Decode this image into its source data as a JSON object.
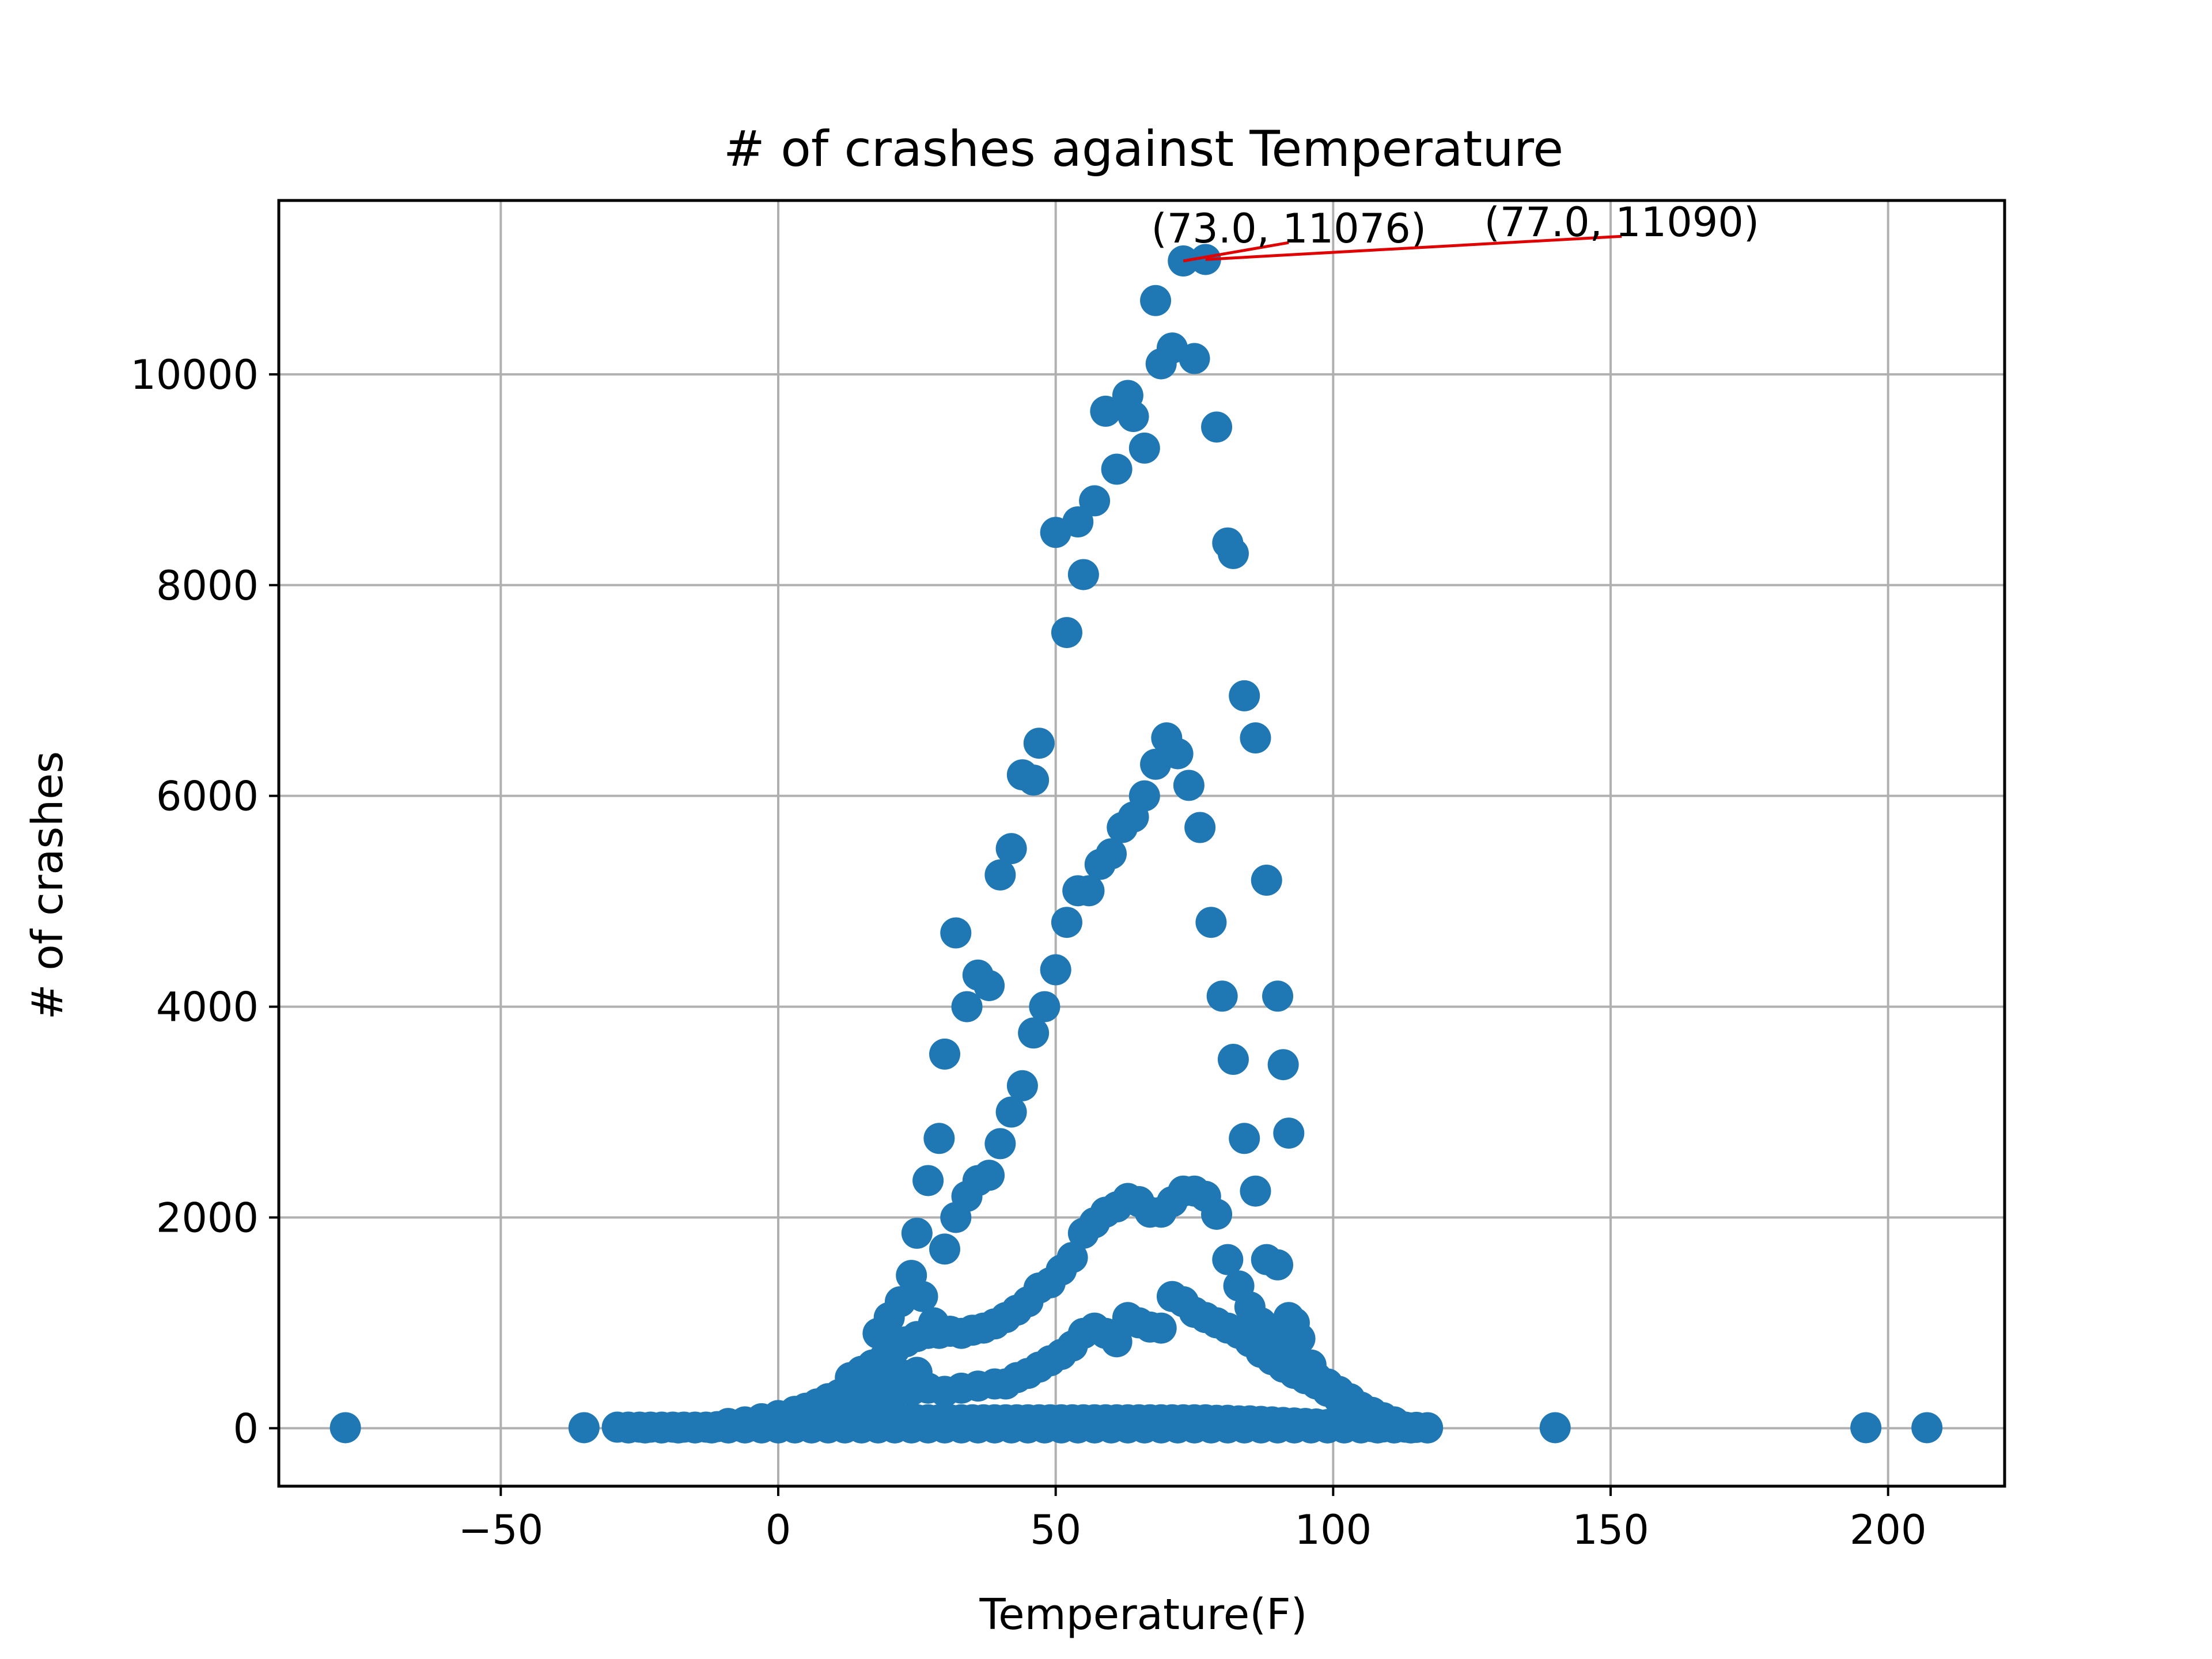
{
  "chart_data": {
    "type": "scatter",
    "title": "# of crashes against Temperature",
    "xlabel": "Temperature(F)",
    "ylabel": "# of crashes",
    "xlim": [
      -90,
      221
    ],
    "ylim": [
      -550,
      11650
    ],
    "xticks": [
      -50,
      0,
      50,
      100,
      150,
      200
    ],
    "xtick_labels": [
      "−50",
      "0",
      "50",
      "100",
      "150",
      "200"
    ],
    "yticks": [
      0,
      2000,
      4000,
      6000,
      8000,
      10000
    ],
    "ytick_labels": [
      "0",
      "2000",
      "4000",
      "6000",
      "8000",
      "10000"
    ],
    "grid": true,
    "marker_color": "#1f77b4",
    "annotation_color": "#e00000",
    "annotations": [
      {
        "label": "(73.0, 11076)",
        "point": [
          73.0,
          11076
        ],
        "text_at": [
          92,
          11250
        ]
      },
      {
        "label": "(77.0, 11090)",
        "point": [
          77.0,
          11090
        ],
        "text_at": [
          152,
          11310
        ]
      }
    ],
    "series": [
      {
        "values": [
          [
            -78,
            5
          ],
          [
            -35,
            5
          ],
          [
            140,
            5
          ],
          [
            196,
            5
          ],
          [
            207,
            5
          ],
          [
            -29,
            10
          ],
          [
            -27,
            10
          ],
          [
            -25,
            10
          ],
          [
            -23,
            10
          ],
          [
            -21,
            10
          ],
          [
            -19,
            10
          ],
          [
            -17,
            10
          ],
          [
            -15,
            10
          ],
          [
            -13,
            10
          ],
          [
            -11,
            15
          ],
          [
            -9,
            15
          ],
          [
            -7,
            20
          ],
          [
            -5,
            20
          ],
          [
            -3,
            25
          ],
          [
            -1,
            30
          ],
          [
            1,
            35
          ],
          [
            3,
            40
          ],
          [
            5,
            45
          ],
          [
            7,
            50
          ],
          [
            9,
            55
          ],
          [
            11,
            60
          ],
          [
            13,
            60
          ],
          [
            15,
            65
          ],
          [
            17,
            70
          ],
          [
            19,
            70
          ],
          [
            21,
            75
          ],
          [
            23,
            75
          ],
          [
            25,
            80
          ],
          [
            27,
            80
          ],
          [
            29,
            80
          ],
          [
            31,
            80
          ],
          [
            33,
            80
          ],
          [
            35,
            80
          ],
          [
            37,
            80
          ],
          [
            39,
            80
          ],
          [
            41,
            80
          ],
          [
            43,
            80
          ],
          [
            45,
            80
          ],
          [
            47,
            80
          ],
          [
            49,
            80
          ],
          [
            51,
            80
          ],
          [
            53,
            80
          ],
          [
            55,
            80
          ],
          [
            57,
            80
          ],
          [
            59,
            80
          ],
          [
            61,
            80
          ],
          [
            63,
            80
          ],
          [
            65,
            80
          ],
          [
            67,
            80
          ],
          [
            69,
            80
          ],
          [
            71,
            80
          ],
          [
            73,
            80
          ],
          [
            75,
            80
          ],
          [
            77,
            80
          ],
          [
            79,
            75
          ],
          [
            81,
            75
          ],
          [
            83,
            70
          ],
          [
            85,
            70
          ],
          [
            87,
            65
          ],
          [
            89,
            60
          ],
          [
            91,
            55
          ],
          [
            93,
            50
          ],
          [
            95,
            45
          ],
          [
            97,
            40
          ],
          [
            99,
            35
          ],
          [
            101,
            30
          ],
          [
            103,
            25
          ],
          [
            105,
            20
          ],
          [
            107,
            15
          ],
          [
            109,
            12
          ],
          [
            111,
            10
          ],
          [
            113,
            10
          ],
          [
            115,
            8
          ],
          [
            117,
            5
          ],
          [
            -27,
            3
          ],
          [
            -24,
            3
          ],
          [
            -21,
            3
          ],
          [
            -18,
            3
          ],
          [
            -15,
            3
          ],
          [
            -12,
            3
          ],
          [
            -9,
            3
          ],
          [
            -6,
            3
          ],
          [
            -3,
            3
          ],
          [
            0,
            3
          ],
          [
            3,
            3
          ],
          [
            6,
            3
          ],
          [
            9,
            3
          ],
          [
            12,
            3
          ],
          [
            15,
            3
          ],
          [
            18,
            3
          ],
          [
            21,
            3
          ],
          [
            24,
            3
          ],
          [
            27,
            3
          ],
          [
            30,
            3
          ],
          [
            33,
            3
          ],
          [
            36,
            3
          ],
          [
            39,
            3
          ],
          [
            42,
            3
          ],
          [
            45,
            3
          ],
          [
            48,
            3
          ],
          [
            51,
            3
          ],
          [
            54,
            3
          ],
          [
            57,
            3
          ],
          [
            60,
            3
          ],
          [
            63,
            3
          ],
          [
            66,
            3
          ],
          [
            69,
            3
          ],
          [
            72,
            3
          ],
          [
            75,
            3
          ],
          [
            78,
            3
          ],
          [
            81,
            3
          ],
          [
            84,
            3
          ],
          [
            87,
            3
          ],
          [
            90,
            3
          ],
          [
            93,
            3
          ],
          [
            96,
            3
          ],
          [
            99,
            3
          ],
          [
            102,
            3
          ],
          [
            105,
            3
          ],
          [
            108,
            3
          ],
          [
            111,
            3
          ],
          [
            114,
            3
          ],
          [
            117,
            3
          ],
          [
            -9,
            45
          ],
          [
            -6,
            60
          ],
          [
            -3,
            90
          ],
          [
            0,
            120
          ],
          [
            3,
            160
          ],
          [
            5,
            190
          ],
          [
            7,
            230
          ],
          [
            9,
            280
          ],
          [
            11,
            320
          ],
          [
            13,
            350
          ],
          [
            15,
            400
          ],
          [
            17,
            420
          ],
          [
            19,
            450
          ],
          [
            21,
            470
          ],
          [
            23,
            500
          ],
          [
            25,
            530
          ],
          [
            0,
            70
          ],
          [
            3,
            100
          ],
          [
            6,
            130
          ],
          [
            9,
            170
          ],
          [
            12,
            210
          ],
          [
            15,
            260
          ],
          [
            18,
            300
          ],
          [
            21,
            330
          ],
          [
            24,
            360
          ],
          [
            27,
            380
          ],
          [
            30,
            350
          ],
          [
            33,
            380
          ],
          [
            36,
            400
          ],
          [
            39,
            420
          ],
          [
            41,
            420
          ],
          [
            43,
            480
          ],
          [
            45,
            520
          ],
          [
            47,
            580
          ],
          [
            49,
            640
          ],
          [
            51,
            700
          ],
          [
            53,
            780
          ],
          [
            55,
            900
          ],
          [
            57,
            950
          ],
          [
            59,
            900
          ],
          [
            61,
            820
          ],
          [
            63,
            1050
          ],
          [
            65,
            1000
          ],
          [
            67,
            960
          ],
          [
            69,
            950
          ],
          [
            71,
            1250
          ],
          [
            73,
            1200
          ],
          [
            75,
            1100
          ],
          [
            77,
            1050
          ],
          [
            79,
            1000
          ],
          [
            81,
            950
          ],
          [
            83,
            900
          ],
          [
            85,
            820
          ],
          [
            87,
            720
          ],
          [
            89,
            650
          ],
          [
            91,
            580
          ],
          [
            93,
            520
          ],
          [
            95,
            470
          ],
          [
            97,
            420
          ],
          [
            99,
            350
          ],
          [
            101,
            280
          ],
          [
            103,
            220
          ],
          [
            105,
            160
          ],
          [
            107,
            110
          ],
          [
            109,
            80
          ],
          [
            111,
            60
          ],
          [
            13,
            480
          ],
          [
            15,
            540
          ],
          [
            17,
            600
          ],
          [
            19,
            660
          ],
          [
            21,
            750
          ],
          [
            23,
            820
          ],
          [
            25,
            870
          ],
          [
            27,
            900
          ],
          [
            29,
            900
          ],
          [
            31,
            920
          ],
          [
            33,
            900
          ],
          [
            35,
            930
          ],
          [
            37,
            950
          ],
          [
            39,
            990
          ],
          [
            41,
            1050
          ],
          [
            43,
            1120
          ],
          [
            45,
            1200
          ],
          [
            47,
            1330
          ],
          [
            49,
            1380
          ],
          [
            51,
            1500
          ],
          [
            53,
            1620
          ],
          [
            55,
            1850
          ],
          [
            57,
            1950
          ],
          [
            59,
            2050
          ],
          [
            61,
            2100
          ],
          [
            63,
            2180
          ],
          [
            65,
            2150
          ],
          [
            67,
            2050
          ],
          [
            69,
            2050
          ],
          [
            71,
            2150
          ],
          [
            73,
            2250
          ],
          [
            75,
            2250
          ],
          [
            77,
            2200
          ],
          [
            79,
            2030
          ],
          [
            81,
            1600
          ],
          [
            83,
            1350
          ],
          [
            85,
            1150
          ],
          [
            87,
            1000
          ],
          [
            89,
            900
          ],
          [
            91,
            800
          ],
          [
            93,
            650
          ],
          [
            95,
            550
          ],
          [
            97,
            480
          ],
          [
            99,
            420
          ],
          [
            101,
            350
          ],
          [
            103,
            280
          ],
          [
            105,
            200
          ],
          [
            107,
            150
          ],
          [
            109,
            100
          ],
          [
            18,
            900
          ],
          [
            20,
            1050
          ],
          [
            22,
            1200
          ],
          [
            24,
            1450
          ],
          [
            26,
            1250
          ],
          [
            28,
            1000
          ],
          [
            30,
            1700
          ],
          [
            32,
            2000
          ],
          [
            34,
            2200
          ],
          [
            36,
            2350
          ],
          [
            38,
            2400
          ],
          [
            40,
            2700
          ],
          [
            42,
            3000
          ],
          [
            44,
            3250
          ],
          [
            46,
            3750
          ],
          [
            48,
            4000
          ],
          [
            50,
            4350
          ],
          [
            52,
            4800
          ],
          [
            54,
            5100
          ],
          [
            56,
            5100
          ],
          [
            58,
            5350
          ],
          [
            60,
            5450
          ],
          [
            62,
            5700
          ],
          [
            64,
            5800
          ],
          [
            66,
            6000
          ],
          [
            68,
            6300
          ],
          [
            70,
            6550
          ],
          [
            72,
            6400
          ],
          [
            74,
            6100
          ],
          [
            76,
            5700
          ],
          [
            78,
            4800
          ],
          [
            80,
            4100
          ],
          [
            82,
            3500
          ],
          [
            84,
            2750
          ],
          [
            86,
            2250
          ],
          [
            88,
            1600
          ],
          [
            90,
            1550
          ],
          [
            92,
            1050
          ],
          [
            94,
            850
          ],
          [
            96,
            600
          ],
          [
            25,
            1850
          ],
          [
            27,
            2350
          ],
          [
            29,
            2750
          ],
          [
            30,
            3550
          ],
          [
            32,
            4700
          ],
          [
            34,
            4000
          ],
          [
            36,
            4300
          ],
          [
            38,
            4200
          ],
          [
            40,
            5250
          ],
          [
            42,
            5500
          ],
          [
            44,
            6200
          ],
          [
            46,
            6150
          ],
          [
            47,
            6500
          ],
          [
            50,
            8500
          ],
          [
            52,
            7550
          ],
          [
            54,
            8600
          ],
          [
            55,
            8100
          ],
          [
            57,
            8800
          ],
          [
            59,
            9650
          ],
          [
            61,
            9100
          ],
          [
            63,
            9800
          ],
          [
            64,
            9600
          ],
          [
            66,
            9300
          ],
          [
            68,
            10700
          ],
          [
            69,
            10100
          ],
          [
            71,
            10250
          ],
          [
            73,
            11076
          ],
          [
            75,
            10150
          ],
          [
            77,
            11090
          ],
          [
            79,
            9500
          ],
          [
            81,
            8400
          ],
          [
            82,
            8300
          ],
          [
            84,
            6950
          ],
          [
            86,
            6550
          ],
          [
            88,
            5200
          ],
          [
            90,
            4100
          ],
          [
            91,
            3450
          ],
          [
            92,
            2800
          ],
          [
            93,
            1000
          ],
          [
            95,
            600
          ]
        ]
      }
    ]
  }
}
